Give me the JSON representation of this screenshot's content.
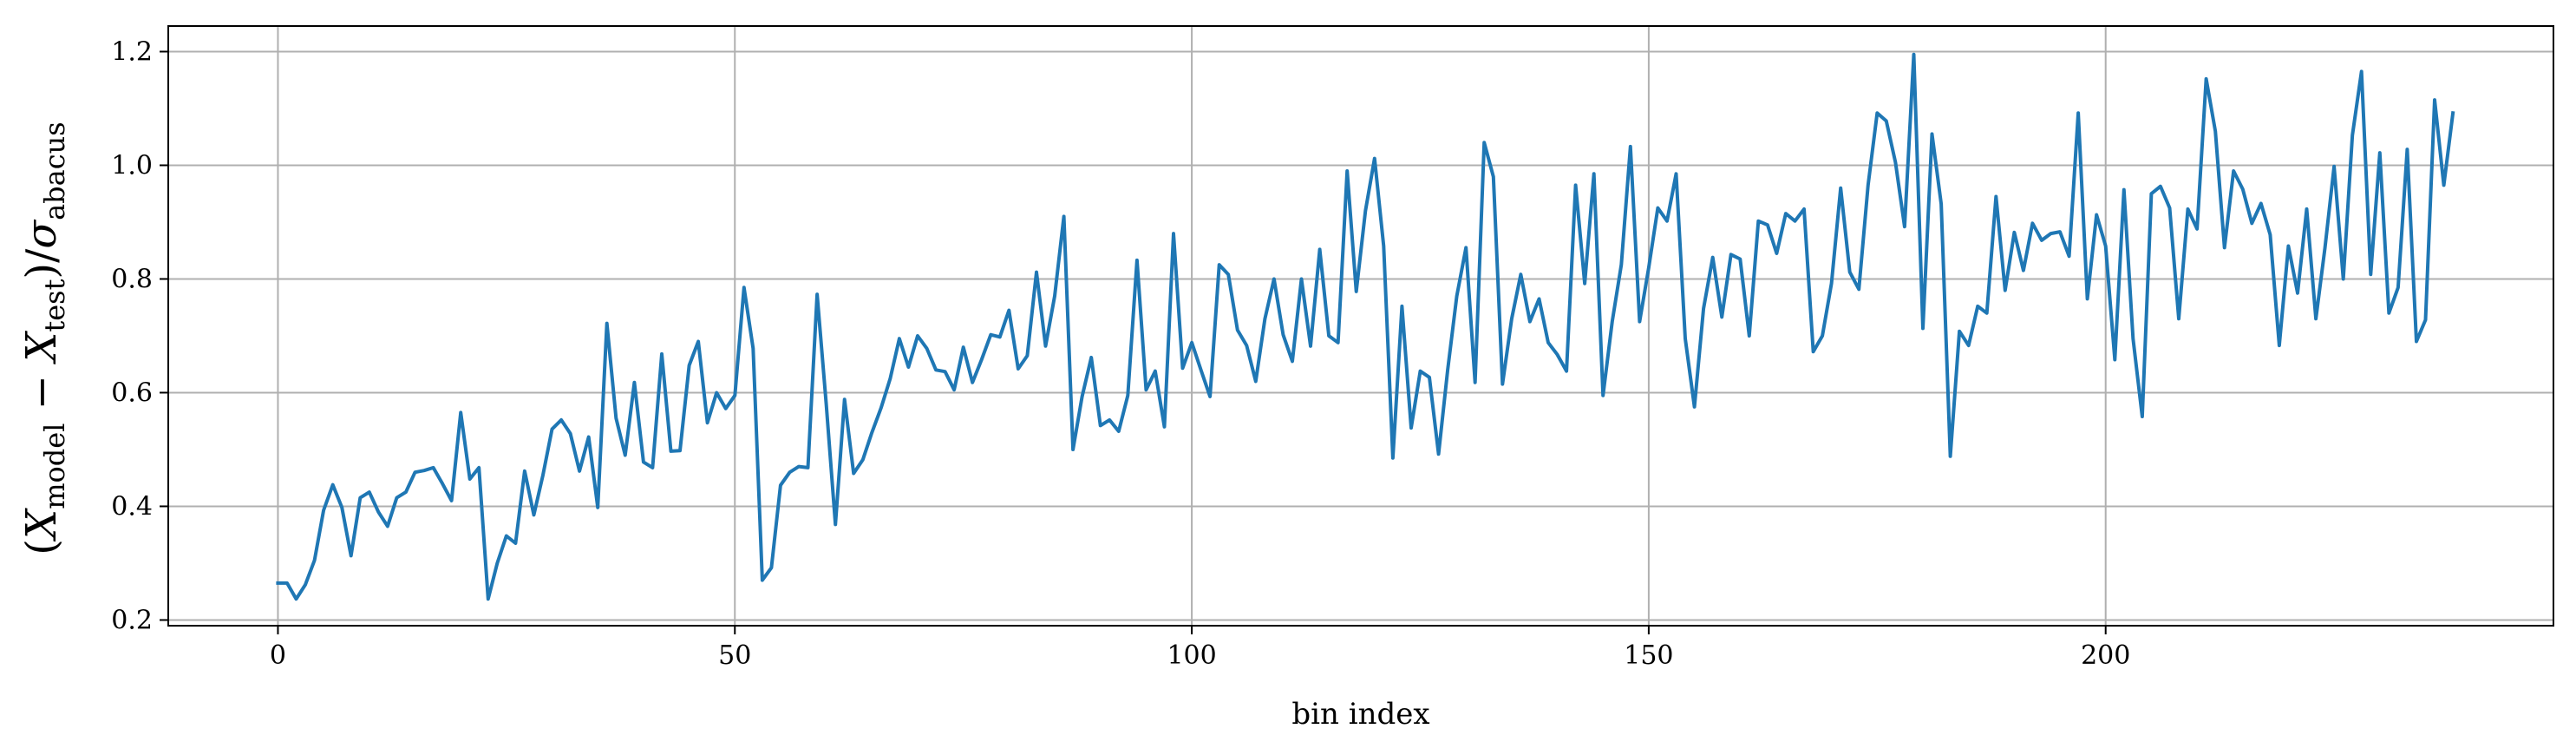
{
  "chart_data": {
    "type": "line",
    "xlabel": "bin index",
    "ylabel": {
      "open": "(",
      "model_var": "X",
      "model_sub": "model",
      "minus": " − ",
      "test_var": "X",
      "test_sub": "test",
      "close": ")/",
      "sigma": "σ",
      "sigma_sub": "abacus"
    },
    "xlim": [
      -12,
      249
    ],
    "ylim": [
      0.19,
      1.245
    ],
    "xticks": [
      0,
      50,
      100,
      150,
      200
    ],
    "yticks": [
      0.2,
      0.4,
      0.6,
      0.8,
      1.0,
      1.2
    ],
    "ytick_labels": [
      "0.2",
      "0.4",
      "0.6",
      "0.8",
      "1.0",
      "1.2"
    ],
    "grid": true,
    "series_color": "#1f77b4",
    "series": [
      {
        "x_start": 0,
        "x_step": 1,
        "values": [
          0.265,
          0.265,
          0.237,
          0.262,
          0.305,
          0.393,
          0.438,
          0.398,
          0.313,
          0.415,
          0.425,
          0.39,
          0.365,
          0.415,
          0.425,
          0.46,
          0.463,
          0.468,
          0.44,
          0.41,
          0.565,
          0.448,
          0.468,
          0.237,
          0.3,
          0.348,
          0.335,
          0.462,
          0.385,
          0.455,
          0.536,
          0.552,
          0.528,
          0.462,
          0.522,
          0.398,
          0.722,
          0.555,
          0.49,
          0.618,
          0.478,
          0.468,
          0.668,
          0.497,
          0.498,
          0.648,
          0.69,
          0.547,
          0.6,
          0.572,
          0.595,
          0.785,
          0.678,
          0.27,
          0.292,
          0.437,
          0.46,
          0.47,
          0.468,
          0.773,
          0.58,
          0.368,
          0.588,
          0.458,
          0.482,
          0.53,
          0.573,
          0.625,
          0.695,
          0.645,
          0.7,
          0.678,
          0.64,
          0.637,
          0.605,
          0.68,
          0.618,
          0.658,
          0.702,
          0.698,
          0.745,
          0.642,
          0.665,
          0.812,
          0.682,
          0.77,
          0.91,
          0.5,
          0.593,
          0.662,
          0.542,
          0.552,
          0.532,
          0.595,
          0.833,
          0.605,
          0.638,
          0.54,
          0.88,
          0.643,
          0.688,
          0.64,
          0.593,
          0.825,
          0.808,
          0.71,
          0.683,
          0.62,
          0.73,
          0.8,
          0.702,
          0.655,
          0.8,
          0.682,
          0.852,
          0.7,
          0.688,
          0.99,
          0.778,
          0.92,
          1.012,
          0.858,
          0.485,
          0.752,
          0.538,
          0.638,
          0.627,
          0.492,
          0.64,
          0.77,
          0.855,
          0.618,
          1.04,
          0.98,
          0.615,
          0.73,
          0.808,
          0.725,
          0.765,
          0.688,
          0.667,
          0.638,
          0.965,
          0.792,
          0.985,
          0.595,
          0.725,
          0.825,
          1.033,
          0.725,
          0.82,
          0.925,
          0.902,
          0.985,
          0.695,
          0.575,
          0.748,
          0.838,
          0.733,
          0.843,
          0.835,
          0.7,
          0.902,
          0.895,
          0.845,
          0.915,
          0.902,
          0.923,
          0.672,
          0.7,
          0.792,
          0.96,
          0.812,
          0.782,
          0.965,
          1.092,
          1.078,
          1.005,
          0.892,
          1.195,
          0.713,
          1.055,
          0.932,
          0.488,
          0.708,
          0.683,
          0.752,
          0.74,
          0.945,
          0.78,
          0.882,
          0.815,
          0.898,
          0.868,
          0.88,
          0.883,
          0.84,
          1.092,
          0.765,
          0.913,
          0.858,
          0.658,
          0.957,
          0.695,
          0.558,
          0.95,
          0.963,
          0.925,
          0.73,
          0.923,
          0.888,
          1.152,
          1.06,
          0.855,
          0.99,
          0.958,
          0.898,
          0.933,
          0.878,
          0.683,
          0.858,
          0.775,
          0.923,
          0.73,
          0.855,
          0.998,
          0.8,
          1.053,
          1.165,
          0.808,
          1.022,
          0.74,
          0.785,
          1.028,
          0.69,
          0.728,
          1.115,
          0.965,
          1.092
        ]
      }
    ]
  }
}
